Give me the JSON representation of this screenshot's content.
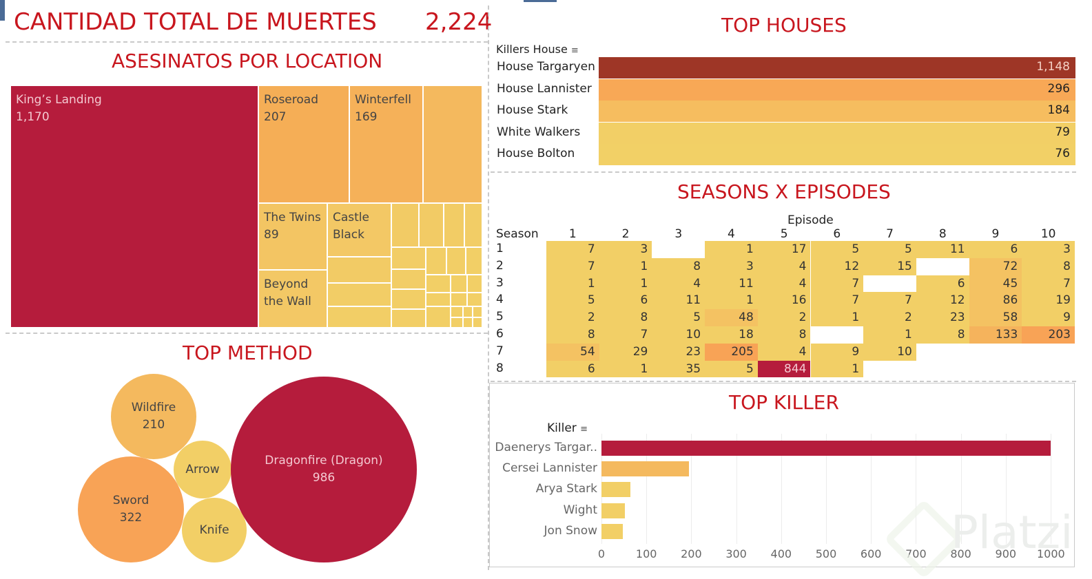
{
  "header": {
    "title": "CANTIDAD TOTAL DE MUERTES",
    "total": "2,224"
  },
  "colors": {
    "crimson": "#b51c3c",
    "orange": "#f8a356",
    "light_orange": "#f4b95e",
    "yellow": "#f2cf66",
    "rust": "#9e3626",
    "title_red": "#c8161e"
  },
  "chart_data": [
    {
      "id": "locations",
      "type": "treemap",
      "title": "ASESINATOS POR LOCATION",
      "items": [
        {
          "name": "King's Landing",
          "value": 1170
        },
        {
          "name": "Roseroad",
          "value": 207
        },
        {
          "name": "Winterfell",
          "value": 169
        },
        {
          "name": "The Twins",
          "value": 89
        },
        {
          "name": "Castle Black",
          "value": null
        },
        {
          "name": "Beyond the Wall",
          "value": null
        }
      ],
      "labels": {
        "kings_landing": {
          "name": "King’s Landing",
          "value": "1,170"
        },
        "roseroad": {
          "name": "Roseroad",
          "value": "207"
        },
        "winterfell": {
          "name": "Winterfell",
          "value": "169"
        },
        "the_twins": {
          "name": "The Twins",
          "value": "89"
        },
        "castle_black": {
          "name1": "Castle",
          "name2": "Black"
        },
        "beyond_wall": {
          "name1": "Beyond",
          "name2": "the Wall"
        }
      }
    },
    {
      "id": "houses",
      "type": "bar",
      "title": "TOP HOUSES",
      "dimension_label": "Killers House",
      "categories": [
        "House Targaryen",
        "House Lannister",
        "House Stark",
        "White Walkers",
        "House Bolton"
      ],
      "values": [
        1148,
        296,
        184,
        79,
        76
      ],
      "value_labels": [
        "1,148",
        "296",
        "184",
        "79",
        "76"
      ]
    },
    {
      "id": "seasons",
      "type": "heatmap",
      "title": "SEASONS X EPISODES",
      "xlabel": "Episode",
      "ylabel": "Season",
      "x": [
        1,
        2,
        3,
        4,
        5,
        6,
        7,
        8,
        9,
        10
      ],
      "y": [
        1,
        2,
        3,
        4,
        5,
        6,
        7,
        8
      ],
      "values": [
        [
          7,
          3,
          null,
          1,
          17,
          5,
          5,
          11,
          6,
          3
        ],
        [
          7,
          1,
          8,
          3,
          4,
          12,
          15,
          null,
          72,
          8
        ],
        [
          1,
          1,
          4,
          11,
          4,
          7,
          null,
          6,
          45,
          7
        ],
        [
          5,
          6,
          11,
          1,
          16,
          7,
          7,
          12,
          86,
          19
        ],
        [
          2,
          8,
          5,
          48,
          2,
          1,
          2,
          23,
          58,
          9
        ],
        [
          8,
          7,
          10,
          18,
          8,
          null,
          1,
          8,
          133,
          203
        ],
        [
          54,
          29,
          23,
          205,
          4,
          9,
          10,
          null,
          null,
          null
        ],
        [
          6,
          1,
          35,
          5,
          844,
          1,
          null,
          null,
          null,
          null
        ]
      ]
    },
    {
      "id": "methods",
      "type": "bubble",
      "title": "TOP METHOD",
      "items": [
        {
          "name": "Dragonfire (Dragon)",
          "value": 986,
          "label": "986"
        },
        {
          "name": "Sword",
          "value": 322,
          "label": "322"
        },
        {
          "name": "Wildfire",
          "value": 210,
          "label": "210"
        },
        {
          "name": "Arrow",
          "value": null,
          "label": ""
        },
        {
          "name": "Knife",
          "value": null,
          "label": ""
        }
      ]
    },
    {
      "id": "killers",
      "type": "bar",
      "title": "TOP KILLER",
      "dimension_label": "Killer",
      "categories": [
        "Daenerys Targar..",
        "Cersei Lannister",
        "Arya Stark",
        "Wight",
        "Jon Snow"
      ],
      "values": [
        1000,
        195,
        65,
        52,
        48
      ],
      "xlim": [
        0,
        1000
      ],
      "ticks": [
        0,
        100,
        200,
        300,
        400,
        500,
        600,
        700,
        800,
        900,
        1000
      ]
    }
  ],
  "watermark": "Platzi"
}
